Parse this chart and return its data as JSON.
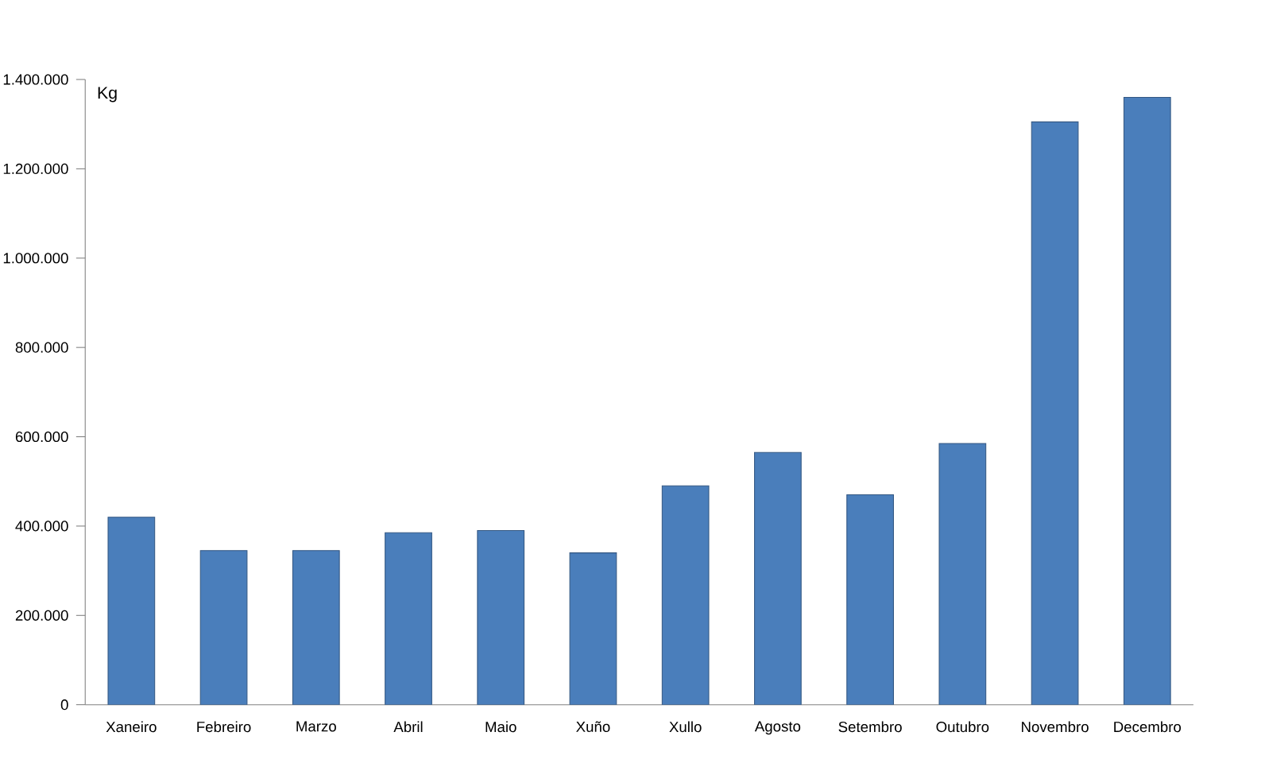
{
  "chart_data": {
    "type": "bar",
    "ylabel": "Kg",
    "categories": [
      "Xaneiro",
      "Febreiro",
      "Marzo",
      "Abril",
      "Maio",
      "Xuño",
      "Xullo",
      "Agosto",
      "Setembro",
      "Outubro",
      "Novembro",
      "Decembro"
    ],
    "values": [
      420000,
      345000,
      345000,
      385000,
      390000,
      340000,
      490000,
      565000,
      470000,
      585000,
      1305000,
      1360000
    ],
    "color": "#4a7ebb",
    "ylim": [
      0,
      1400000
    ],
    "yticks": [
      {
        "value": 0,
        "label": "0"
      },
      {
        "value": 200000,
        "label": "200.000"
      },
      {
        "value": 400000,
        "label": "400.000"
      },
      {
        "value": 600000,
        "label": "600.000"
      },
      {
        "value": 800000,
        "label": "800.000"
      },
      {
        "value": 1000000,
        "label": "1.000.000"
      },
      {
        "value": 1200000,
        "label": "1.200.000"
      },
      {
        "value": 1400000,
        "label": "1.400.000"
      }
    ],
    "grid": false
  }
}
